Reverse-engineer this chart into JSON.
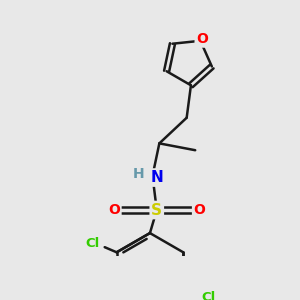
{
  "background_color": "#e8e8e8",
  "bond_color": "#1a1a1a",
  "atom_colors": {
    "O": "#ff0000",
    "N": "#0000ee",
    "S": "#cccc00",
    "Cl": "#33cc00",
    "H_label": "#6699aa"
  },
  "bond_width": 1.8,
  "figsize": [
    3.0,
    3.0
  ],
  "dpi": 100
}
